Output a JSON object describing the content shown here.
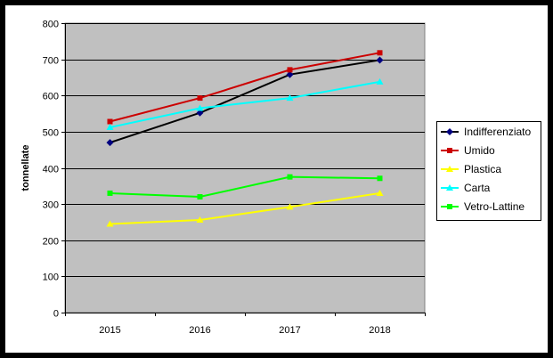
{
  "chart_data": {
    "type": "line",
    "title": "",
    "xlabel": "",
    "ylabel": "tonnellate",
    "ylim": [
      0,
      800
    ],
    "ytick_step": 100,
    "y_ticks": [
      "0",
      "100",
      "200",
      "300",
      "400",
      "500",
      "600",
      "700",
      "800"
    ],
    "grid": "horizontal",
    "plot_background": "#c0c0c0",
    "legend_position": "right",
    "categories": [
      "2015",
      "2016",
      "2017",
      "2018"
    ],
    "series": [
      {
        "name": "Indifferenziato",
        "color": "#000080",
        "line_color": "#000000",
        "marker": "diamond",
        "values": [
          470,
          552,
          658,
          698
        ]
      },
      {
        "name": "Umido",
        "color": "#cc0000",
        "line_color": "#cc0000",
        "marker": "square",
        "values": [
          528,
          593,
          671,
          718
        ]
      },
      {
        "name": "Plastica",
        "color": "#ffff00",
        "line_color": "#ffff00",
        "marker": "triangle",
        "values": [
          245,
          256,
          292,
          330
        ]
      },
      {
        "name": "Carta",
        "color": "#00ffff",
        "line_color": "#00ffff",
        "marker": "triangle",
        "values": [
          512,
          565,
          593,
          638
        ]
      },
      {
        "name": "Vetro-Lattine",
        "color": "#00ff00",
        "line_color": "#00ff00",
        "marker": "square",
        "values": [
          330,
          320,
          375,
          371
        ]
      }
    ]
  }
}
